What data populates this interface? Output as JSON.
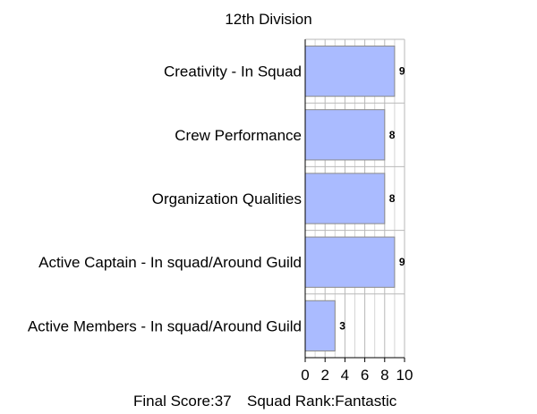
{
  "chart_data": {
    "type": "bar",
    "orientation": "horizontal",
    "title": "12th Division",
    "categories": [
      "Creativity - In Squad",
      "Crew Performance",
      "Organization Qualities",
      "Active Captain - In squad/Around Guild",
      "Active Members - In squad/Around Guild"
    ],
    "values": [
      9,
      8,
      8,
      9,
      3
    ],
    "xlim": [
      0,
      10
    ],
    "xticks": [
      0,
      2,
      4,
      6,
      8,
      10
    ],
    "grid": true,
    "bar_color": "#aabbff",
    "legend": "none"
  },
  "footer": {
    "final_score": "Final Score:37",
    "squad_rank": "Squad Rank:Fantastic"
  }
}
